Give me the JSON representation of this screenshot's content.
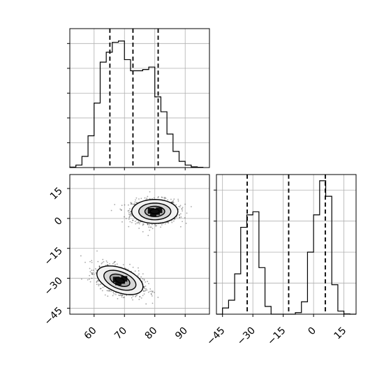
{
  "chart_data": [
    {
      "type": "histogram",
      "panel": "x-marginal",
      "xlim": [
        52,
        98
      ],
      "bins": [
        52,
        54,
        56,
        58,
        60,
        62,
        64,
        66,
        68,
        70,
        72,
        74,
        76,
        78,
        80,
        82,
        84,
        86,
        88,
        90,
        92,
        94,
        96
      ],
      "counts": [
        2,
        10,
        45,
        128,
        260,
        425,
        465,
        505,
        510,
        435,
        390,
        390,
        395,
        405,
        285,
        225,
        135,
        65,
        25,
        10,
        3,
        1
      ],
      "ylim": [
        0,
        560
      ],
      "quantiles": [
        65.2,
        72.8,
        81.1
      ],
      "grid": true
    },
    {
      "type": "histogram",
      "panel": "y-marginal",
      "xlim": [
        -48,
        21
      ],
      "bins": [
        -48,
        -45,
        -42,
        -39,
        -36,
        -33,
        -30,
        -27,
        -24,
        -21,
        -18,
        -15,
        -12,
        -9,
        -6,
        -3,
        0,
        3,
        6,
        9,
        12,
        15,
        18,
        21
      ],
      "counts": [
        0,
        20,
        45,
        130,
        280,
        320,
        330,
        150,
        25,
        0,
        0,
        0,
        0,
        5,
        40,
        200,
        320,
        430,
        380,
        95,
        10,
        1,
        0
      ],
      "ylim": [
        0,
        450
      ],
      "quantiles": [
        -32.8,
        -12.3,
        5.8
      ],
      "grid": true
    },
    {
      "type": "contour",
      "panel": "joint",
      "xlim": [
        52,
        98
      ],
      "ylim": [
        -48,
        22
      ],
      "clusters": [
        {
          "cx": 80,
          "cy": 3.5,
          "sx": 3.8,
          "sy": 3.0,
          "rho": 0
        },
        {
          "cx": 68.5,
          "cy": -31,
          "sx": 3.8,
          "sy": 3.6,
          "rho": -0.45
        }
      ],
      "levels": [
        0.39,
        0.86,
        1.39,
        2.0
      ],
      "grid": true
    }
  ],
  "axes": {
    "x_ticks": [
      "60",
      "70",
      "80",
      "90"
    ],
    "x_tick_values": [
      60,
      70,
      80,
      90
    ],
    "y_ticks": [
      "15",
      "0",
      "−15",
      "−30",
      "−45"
    ],
    "y_tick_values": [
      15,
      0,
      -15,
      -30,
      -45
    ],
    "y_marginal_ticks": [
      "−45",
      "−30",
      "−15",
      "0",
      "15"
    ],
    "y_marginal_tick_values": [
      -45,
      -30,
      -15,
      0,
      15
    ]
  },
  "colors": {
    "line": "#000000",
    "grid": "#b0b0b0",
    "density": "#000000"
  }
}
